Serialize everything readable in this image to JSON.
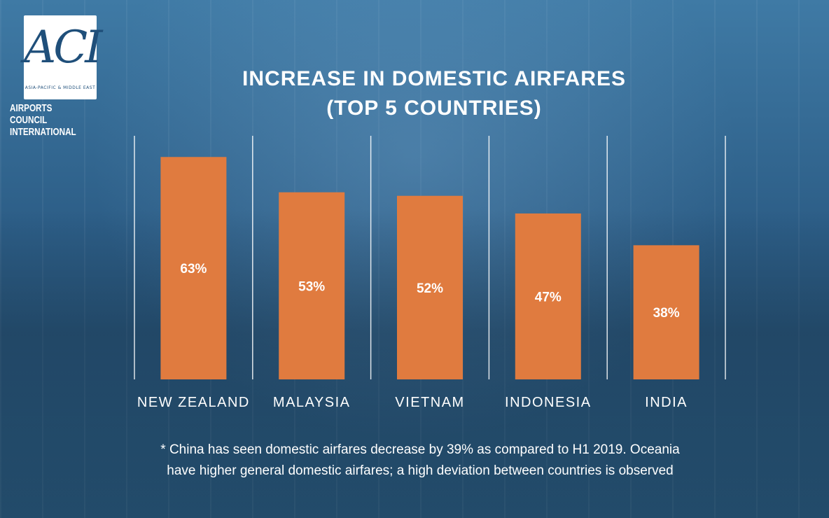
{
  "logo": {
    "letters": "ACI",
    "subtitle": "ASIA-PACIFIC & MIDDLE EAST",
    "name_line1": "AIRPORTS COUNCIL",
    "name_line2": "INTERNATIONAL"
  },
  "chart_data": {
    "type": "bar",
    "title_line1": "INCREASE IN DOMESTIC AIRFARES",
    "title_line2": "(TOP 5 COUNTRIES)",
    "categories": [
      "NEW ZEALAND",
      "MALAYSIA",
      "VIETNAM",
      "INDONESIA",
      "INDIA"
    ],
    "values": [
      63,
      53,
      52,
      47,
      38
    ],
    "value_labels": [
      "63%",
      "53%",
      "52%",
      "47%",
      "38%"
    ],
    "ylim": [
      0,
      69
    ],
    "bar_color": "#e07b3f",
    "grid": "vertical separators",
    "legend": "none"
  },
  "footnote": {
    "line1": "* China has seen domestic airfares decrease by 39% as compared to H1 2019. Oceania",
    "line2": "have higher general domestic airfares; a high deviation between countries is observed"
  }
}
